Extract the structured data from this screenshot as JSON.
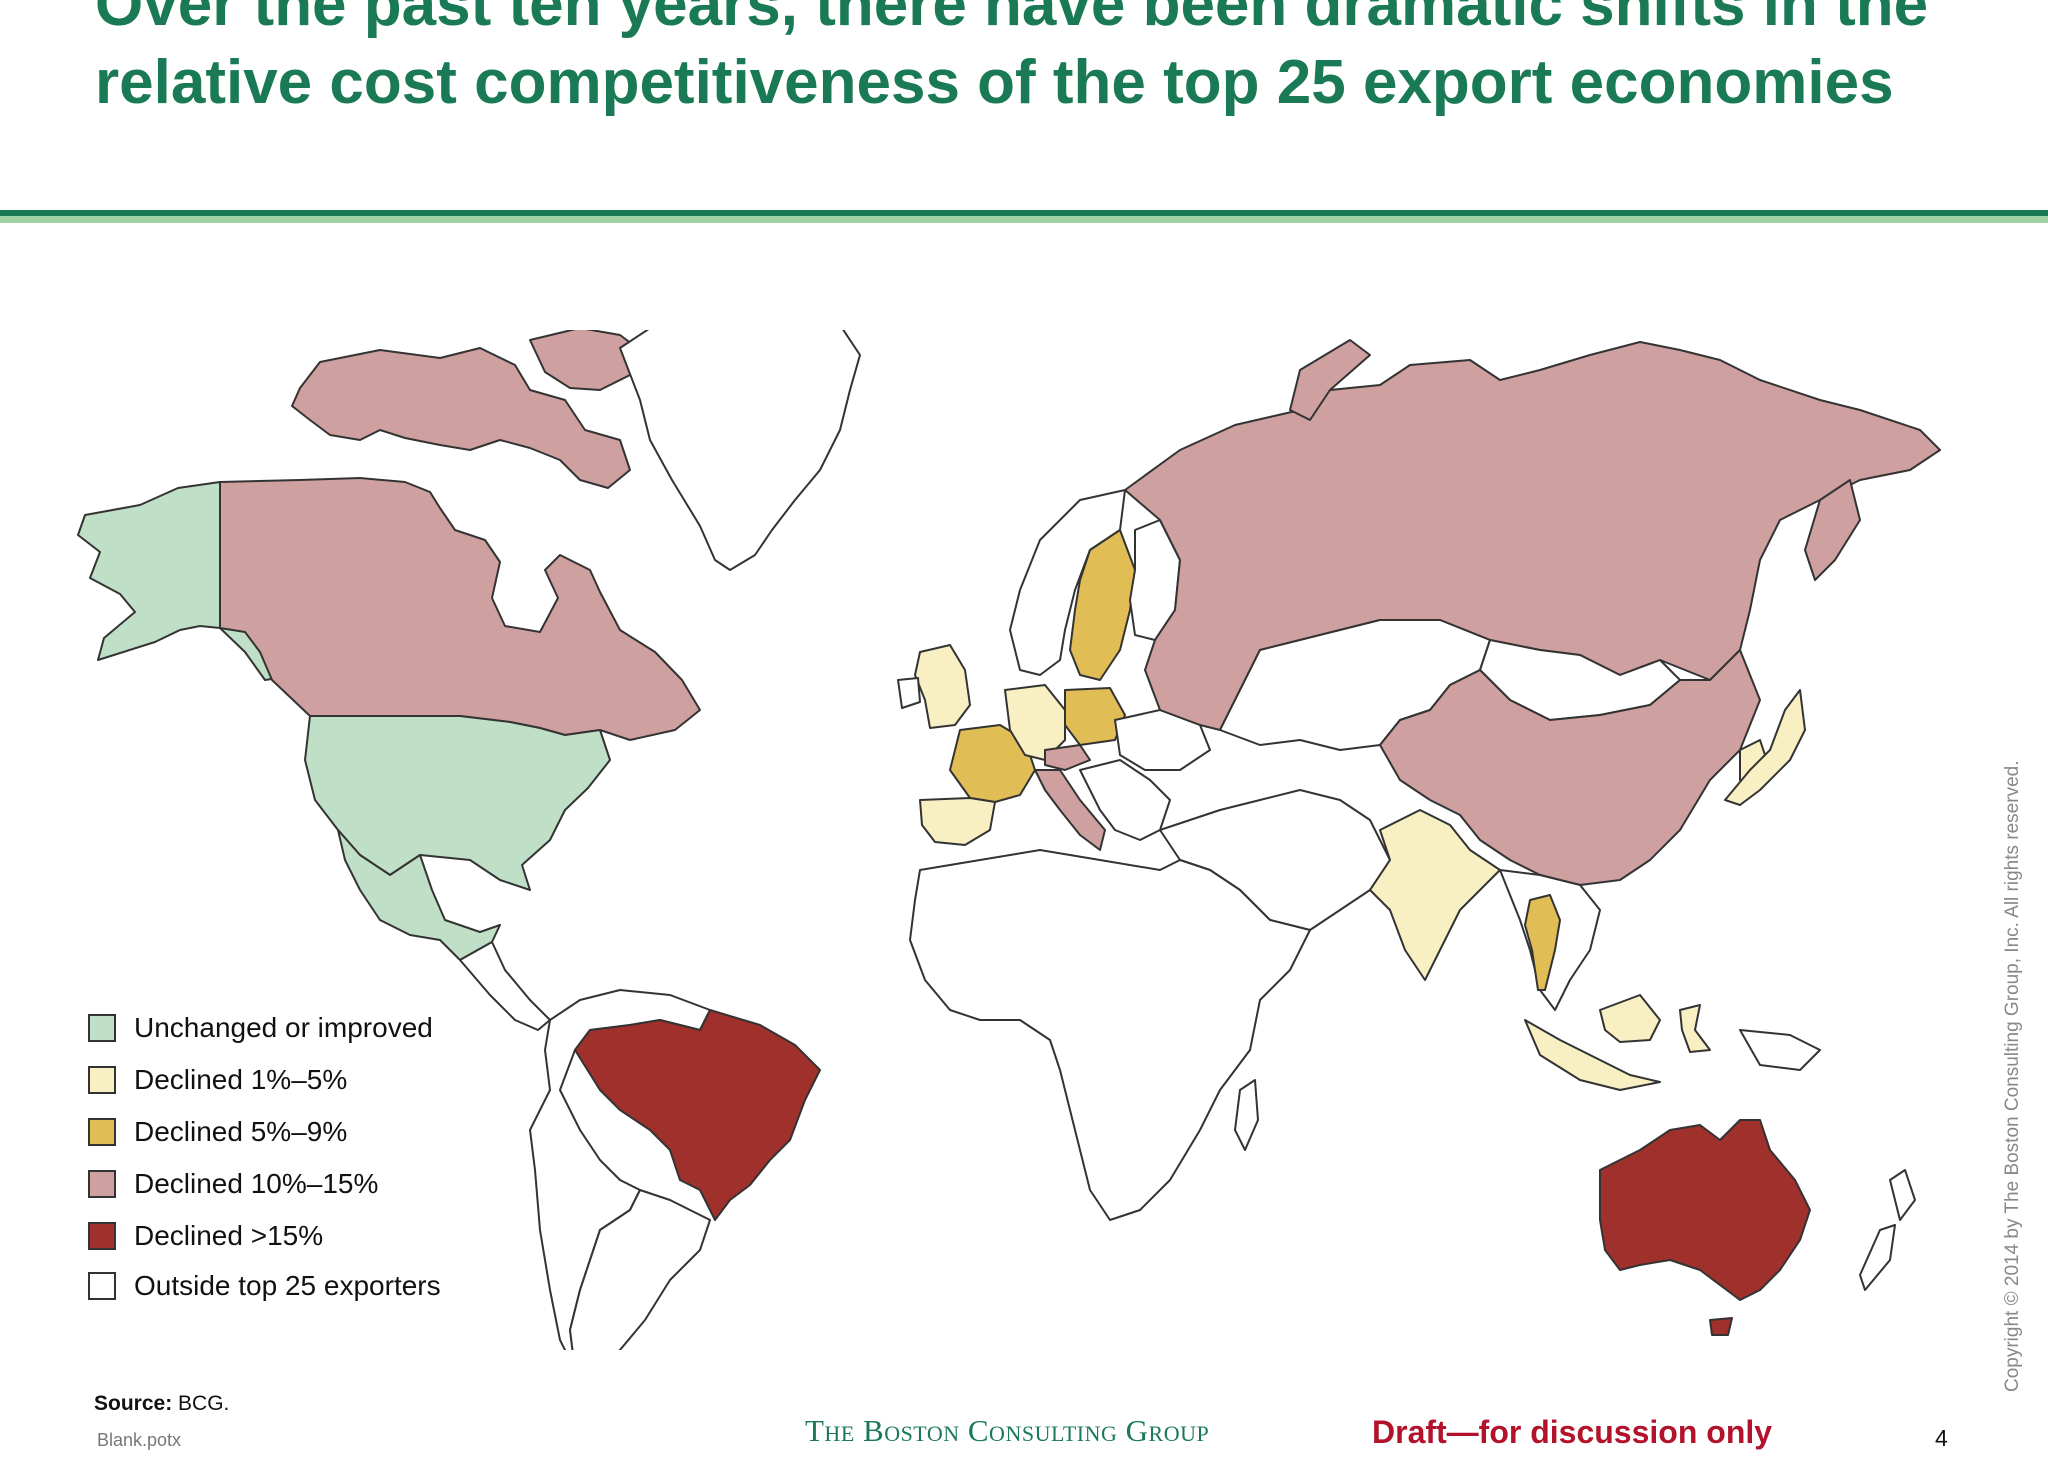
{
  "slide": {
    "title": "Over the past ten years, there have been dramatic shifts in the relative cost competitiveness of the top 25 export economies",
    "source_label": "Source:",
    "source_text": "BCG.",
    "filename": "Blank.potx",
    "brand": "The Boston Consulting Group",
    "draft_notice": "Draft—for discussion only",
    "page_number": "4",
    "copyright": "Copyright © 2014 by The Boston Consulting Group, Inc. All rights reserved."
  },
  "colors": {
    "title_green": "#1a7a55",
    "rule_light": "#9fd3a6",
    "draft_red": "#b2132b",
    "border": "#333333"
  },
  "legend": [
    {
      "id": "unchanged",
      "label": "Unchanged or improved",
      "color": "#bfe0c6"
    },
    {
      "id": "d1_5",
      "label": "Declined  1%–5%",
      "color": "#f8efc2"
    },
    {
      "id": "d5_9",
      "label": "Declined 5%–9%",
      "color": "#e0bd55"
    },
    {
      "id": "d10_15",
      "label": "Declined 10%–15%",
      "color": "#cfa0a0"
    },
    {
      "id": "d15",
      "label": "Declined >15%",
      "color": "#a0302b"
    },
    {
      "id": "outside",
      "label": "Outside top 25 exporters",
      "color": "#ffffff"
    }
  ],
  "map": {
    "regions": [
      {
        "id": "alaska",
        "category": "unchanged"
      },
      {
        "id": "canada",
        "category": "d10_15"
      },
      {
        "id": "arctic-islands",
        "category": "d10_15"
      },
      {
        "id": "greenland",
        "category": "outside"
      },
      {
        "id": "usa",
        "category": "unchanged"
      },
      {
        "id": "mexico",
        "category": "unchanged"
      },
      {
        "id": "central-america",
        "category": "outside"
      },
      {
        "id": "south-america-north",
        "category": "outside"
      },
      {
        "id": "brazil",
        "category": "d15"
      },
      {
        "id": "southern-cone",
        "category": "outside"
      },
      {
        "id": "uk",
        "category": "d1_5"
      },
      {
        "id": "ireland",
        "category": "outside"
      },
      {
        "id": "norway",
        "category": "outside"
      },
      {
        "id": "sweden",
        "category": "d5_9"
      },
      {
        "id": "finland",
        "category": "outside"
      },
      {
        "id": "france",
        "category": "d5_9"
      },
      {
        "id": "spain",
        "category": "d1_5"
      },
      {
        "id": "germany",
        "category": "d1_5"
      },
      {
        "id": "poland",
        "category": "d5_9"
      },
      {
        "id": "czech",
        "category": "d10_15"
      },
      {
        "id": "italy",
        "category": "d10_15"
      },
      {
        "id": "balkans",
        "category": "outside"
      },
      {
        "id": "ukraine",
        "category": "outside"
      },
      {
        "id": "russia",
        "category": "d10_15"
      },
      {
        "id": "kazakhstan",
        "category": "outside"
      },
      {
        "id": "middle-east",
        "category": "outside"
      },
      {
        "id": "africa",
        "category": "outside"
      },
      {
        "id": "madagascar",
        "category": "outside"
      },
      {
        "id": "india",
        "category": "d1_5"
      },
      {
        "id": "china",
        "category": "d10_15"
      },
      {
        "id": "mongolia",
        "category": "outside"
      },
      {
        "id": "korea",
        "category": "d1_5"
      },
      {
        "id": "japan",
        "category": "d1_5"
      },
      {
        "id": "thailand",
        "category": "d5_9"
      },
      {
        "id": "southeast-asia",
        "category": "outside"
      },
      {
        "id": "indonesia",
        "category": "d1_5"
      },
      {
        "id": "papua",
        "category": "outside"
      },
      {
        "id": "australia",
        "category": "d15"
      },
      {
        "id": "tasmania",
        "category": "d15"
      },
      {
        "id": "new-zealand",
        "category": "outside"
      }
    ]
  }
}
